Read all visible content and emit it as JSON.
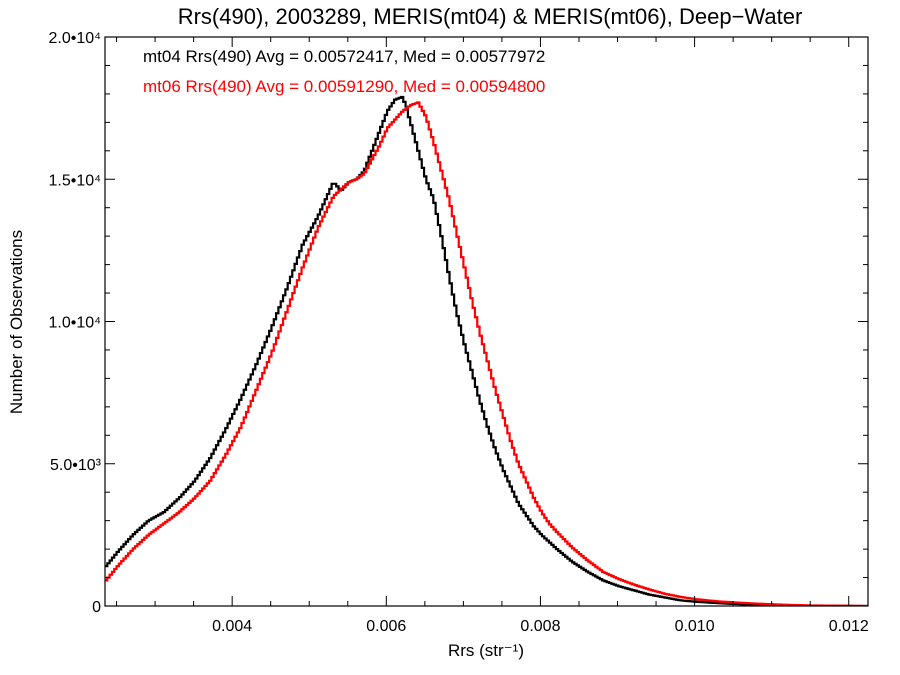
{
  "chart_data": {
    "type": "line",
    "title": "Rrs(490), 2003289, MERIS(mt04) & MERIS(mt06), Deep−Water",
    "xlabel": "Rrs (str⁻¹)",
    "ylabel": "Number of Observations",
    "xlim": [
      0.00235,
      0.01225
    ],
    "ylim": [
      0,
      20000
    ],
    "x_ticks": [
      0.004,
      0.006,
      0.008,
      0.01,
      0.012
    ],
    "x_tick_labels": [
      "0.004",
      "0.006",
      "0.008",
      "0.010",
      "0.012"
    ],
    "y_ticks": [
      0,
      5000,
      10000,
      15000,
      20000
    ],
    "y_tick_labels": [
      "0",
      "5.0•10³",
      "1.0•10⁴",
      "1.5•10⁴",
      "2.0•10⁴"
    ],
    "grid": false,
    "legend_position": "top-left",
    "series": [
      {
        "name": "mt04 Rrs(490) Avg = 0.00572417, Med = 0.00577972",
        "color": "#000000",
        "x": [
          0.00235,
          0.0025,
          0.0027,
          0.0029,
          0.0031,
          0.0033,
          0.0035,
          0.0037,
          0.0039,
          0.0041,
          0.0043,
          0.0045,
          0.0047,
          0.0049,
          0.0051,
          0.0053,
          0.0054,
          0.0055,
          0.0056,
          0.0057,
          0.0058,
          0.0059,
          0.006,
          0.0061,
          0.0062,
          0.0063,
          0.0064,
          0.0065,
          0.0066,
          0.0067,
          0.0068,
          0.0069,
          0.007,
          0.0071,
          0.0072,
          0.0073,
          0.0074,
          0.0075,
          0.0076,
          0.0077,
          0.0078,
          0.0079,
          0.008,
          0.0082,
          0.0084,
          0.0086,
          0.0088,
          0.009,
          0.0092,
          0.0094,
          0.0096,
          0.0098,
          0.01,
          0.0103,
          0.0106,
          0.0109,
          0.0112,
          0.0115,
          0.01225
        ],
        "y": [
          1400,
          1900,
          2500,
          3000,
          3300,
          3800,
          4400,
          5200,
          6200,
          7300,
          8500,
          9800,
          11200,
          12700,
          13700,
          14900,
          14600,
          14900,
          15000,
          15300,
          16000,
          16700,
          17400,
          17800,
          17900,
          17000,
          16000,
          15000,
          14300,
          13000,
          11600,
          10300,
          9200,
          8200,
          7200,
          6300,
          5500,
          4800,
          4200,
          3600,
          3200,
          2800,
          2500,
          2000,
          1550,
          1200,
          900,
          700,
          550,
          400,
          300,
          200,
          150,
          100,
          60,
          40,
          20,
          10,
          0
        ]
      },
      {
        "name": "mt06 Rrs(490) Avg = 0.00591290, Med = 0.00594800",
        "color": "#ff0000",
        "x": [
          0.00235,
          0.0025,
          0.0027,
          0.0029,
          0.0031,
          0.0033,
          0.0035,
          0.0037,
          0.0039,
          0.0041,
          0.0043,
          0.0045,
          0.0047,
          0.0049,
          0.0051,
          0.0053,
          0.0055,
          0.0056,
          0.0057,
          0.0058,
          0.0059,
          0.006,
          0.0061,
          0.0062,
          0.0063,
          0.0064,
          0.0065,
          0.0066,
          0.0067,
          0.0068,
          0.0069,
          0.007,
          0.0071,
          0.0072,
          0.0073,
          0.0074,
          0.0075,
          0.0076,
          0.0077,
          0.0078,
          0.0079,
          0.008,
          0.0081,
          0.0082,
          0.0084,
          0.0086,
          0.0088,
          0.009,
          0.0092,
          0.0094,
          0.0096,
          0.0098,
          0.01,
          0.0103,
          0.0106,
          0.0109,
          0.0112,
          0.0115,
          0.01225
        ],
        "y": [
          900,
          1400,
          2000,
          2500,
          2900,
          3300,
          3800,
          4400,
          5300,
          6300,
          7600,
          8900,
          10400,
          11900,
          13300,
          14400,
          14900,
          15000,
          15200,
          15700,
          16200,
          16800,
          17100,
          17400,
          17600,
          17700,
          17200,
          16300,
          15300,
          14300,
          13100,
          11900,
          10700,
          9600,
          8600,
          7600,
          6700,
          5800,
          5000,
          4400,
          3800,
          3300,
          2900,
          2600,
          2050,
          1600,
          1200,
          950,
          750,
          580,
          430,
          320,
          240,
          160,
          110,
          70,
          40,
          20,
          0
        ]
      }
    ]
  }
}
